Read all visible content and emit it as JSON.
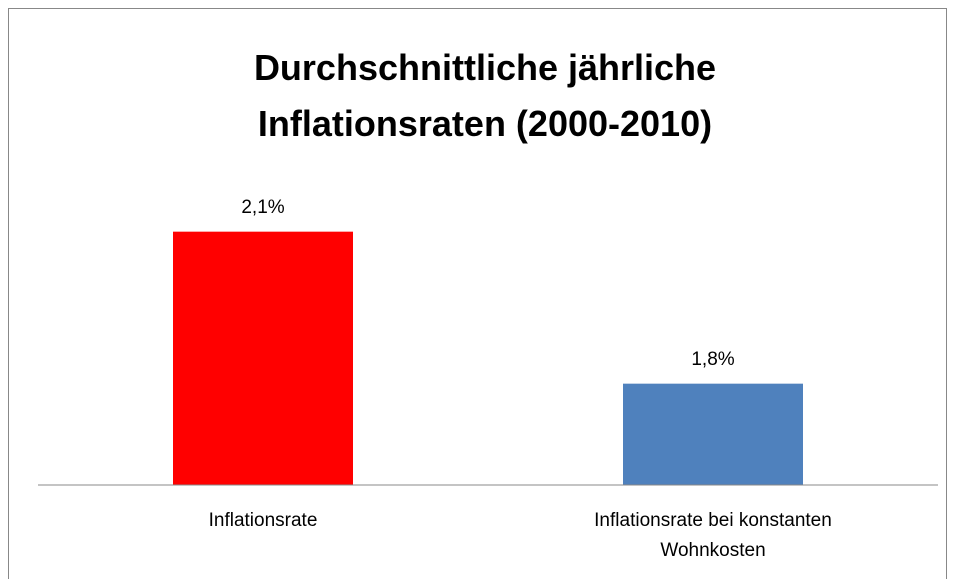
{
  "chart_data": {
    "type": "bar",
    "title": "Durchschnittliche jährliche Inflationsraten (2000-2010)",
    "categories": [
      "Inflationsrate",
      "Inflationsrate bei konstanten Wohnkosten"
    ],
    "values": [
      2.1,
      1.8
    ],
    "value_labels": [
      "2,1%",
      "1,8%"
    ],
    "colors": [
      "#ff0000",
      "#4f81bd"
    ],
    "ylim": [
      1.6,
      2.2
    ]
  }
}
